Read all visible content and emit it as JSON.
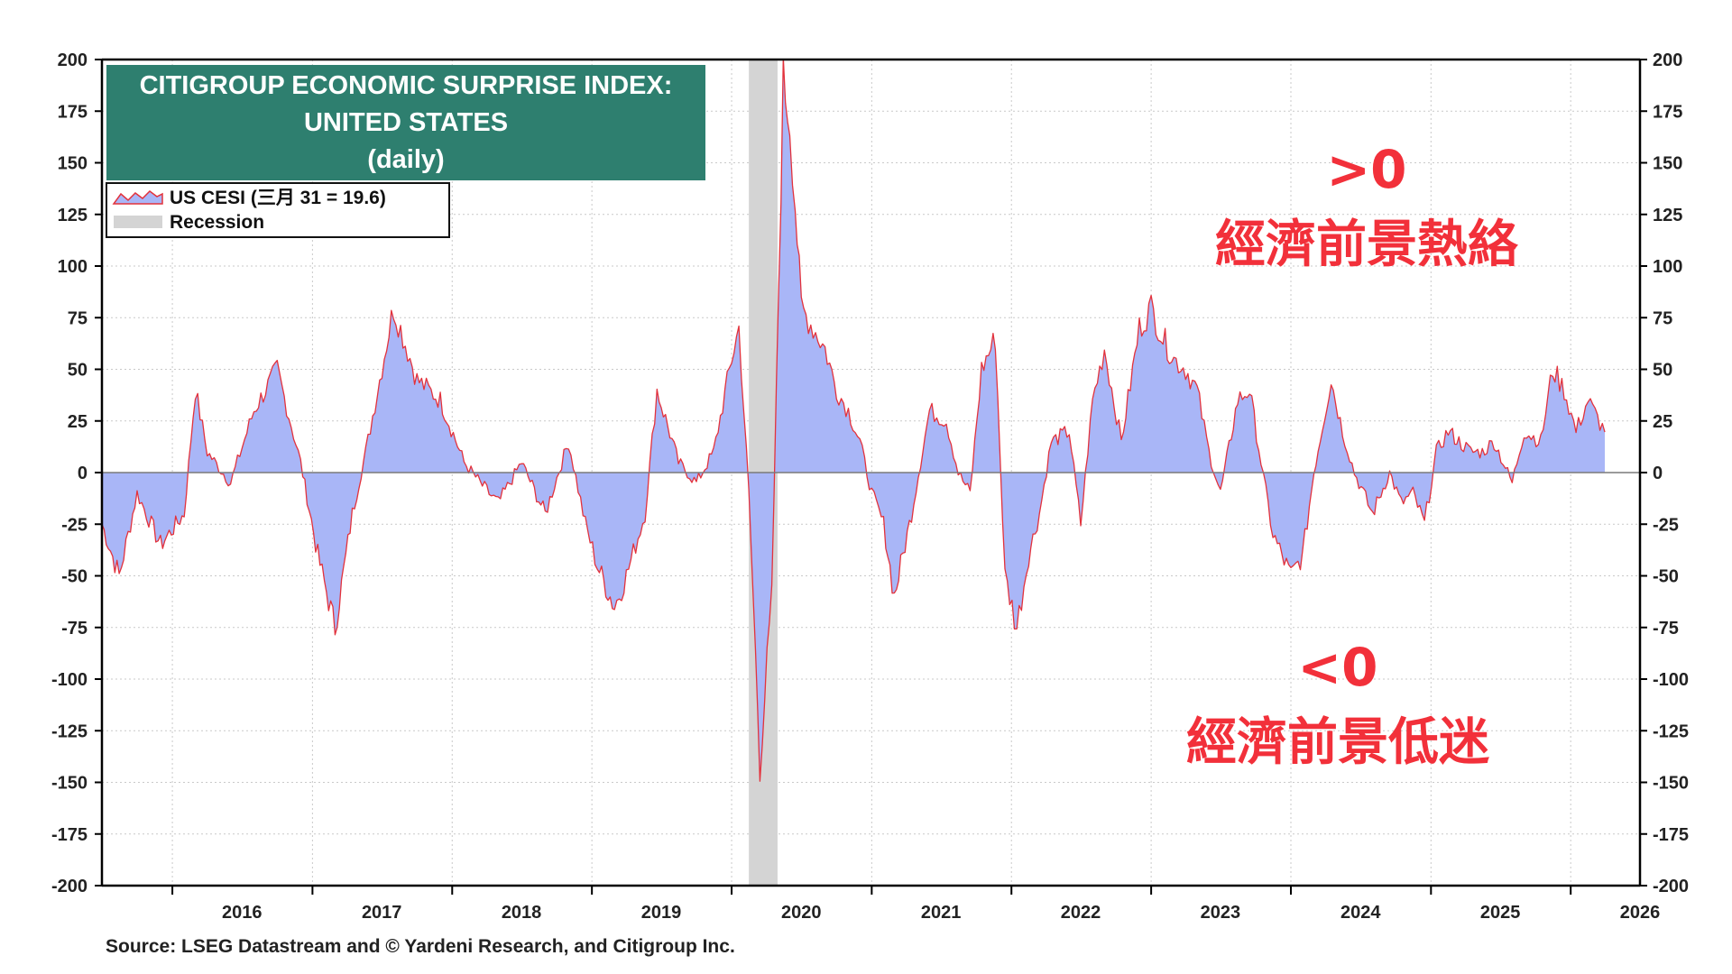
{
  "chart_data": {
    "type": "area",
    "title": [
      "CITIGROUP ECONOMIC SURPRISE INDEX:",
      "UNITED STATES",
      "(daily)"
    ],
    "xlabel": "",
    "ylabel": "",
    "ylim": [
      -200,
      200
    ],
    "y_ticks": [
      "200",
      "175",
      "150",
      "125",
      "100",
      "75",
      "50",
      "25",
      "0",
      "-25",
      "-50",
      "-75",
      "-100",
      "-125",
      "-150",
      "-175",
      "-200"
    ],
    "x_ticks": [
      "2016",
      "2017",
      "2018",
      "2019",
      "2020",
      "2021",
      "2022",
      "2023",
      "2024",
      "2025",
      "2026"
    ],
    "xlim": [
      "2015-07-01",
      "2026-07-01"
    ],
    "grid": true,
    "legend_position": "top-left",
    "legend": [
      {
        "label": "US CESI (三月 31 = 19.6)",
        "kind": "series"
      },
      {
        "label": "Recession",
        "kind": "shade"
      }
    ],
    "recession": {
      "start": "2020-02-15",
      "end": "2020-04-30"
    },
    "series": [
      {
        "name": "US CESI",
        "x": [
          "2015-07-01",
          "2015-08-15",
          "2015-10-01",
          "2015-12-01",
          "2016-02-01",
          "2016-03-01",
          "2016-04-01",
          "2016-06-01",
          "2016-08-01",
          "2016-10-01",
          "2016-12-01",
          "2017-01-15",
          "2017-03-01",
          "2017-04-15",
          "2017-05-20",
          "2017-08-01",
          "2017-10-01",
          "2017-12-01",
          "2018-02-01",
          "2018-03-15",
          "2018-05-01",
          "2018-07-01",
          "2018-09-01",
          "2018-11-01",
          "2018-12-15",
          "2019-01-15",
          "2019-03-01",
          "2019-04-01",
          "2019-05-20",
          "2019-06-20",
          "2019-08-15",
          "2019-10-01",
          "2019-11-15",
          "2020-01-01",
          "2020-01-20",
          "2020-02-15",
          "2020-03-15",
          "2020-04-15",
          "2020-05-15",
          "2020-06-01",
          "2020-06-15",
          "2020-07-01",
          "2020-08-01",
          "2020-09-01",
          "2020-10-01",
          "2020-11-01",
          "2020-12-01",
          "2021-01-01",
          "2021-02-01",
          "2021-03-01",
          "2021-04-15",
          "2021-06-01",
          "2021-07-15",
          "2021-08-15",
          "2021-09-15",
          "2021-10-15",
          "2021-11-20",
          "2021-12-15",
          "2022-01-15",
          "2022-02-15",
          "2022-03-15",
          "2022-04-15",
          "2022-06-01",
          "2022-07-01",
          "2022-08-01",
          "2022-09-01",
          "2022-10-15",
          "2022-12-01",
          "2023-01-01",
          "2023-02-01",
          "2023-03-01",
          "2023-04-01",
          "2023-05-01",
          "2023-06-01",
          "2023-07-01",
          "2023-08-15",
          "2023-09-15",
          "2023-10-15",
          "2023-11-15",
          "2024-01-01",
          "2024-02-01",
          "2024-03-01",
          "2024-04-15",
          "2024-05-15",
          "2024-06-15",
          "2024-08-01",
          "2024-09-15",
          "2024-10-15",
          "2024-11-15",
          "2024-12-15",
          "2025-01-15",
          "2025-02-15",
          "2025-03-15",
          "2025-04-15",
          "2025-05-15",
          "2025-06-15",
          "2025-08-01",
          "2025-09-01",
          "2025-10-15",
          "2025-11-15",
          "2025-12-15",
          "2026-01-15",
          "2026-02-15",
          "2026-03-31"
        ],
        "values": [
          -25,
          -50,
          -10,
          -35,
          -20,
          40,
          10,
          -5,
          30,
          50,
          5,
          -40,
          -75,
          -20,
          10,
          80,
          45,
          35,
          5,
          -5,
          -15,
          5,
          -20,
          15,
          -25,
          -45,
          -65,
          -50,
          -20,
          40,
          5,
          -5,
          10,
          55,
          70,
          -10,
          -140,
          -60,
          190,
          170,
          130,
          80,
          70,
          60,
          40,
          30,
          15,
          -10,
          -25,
          -60,
          -20,
          30,
          25,
          0,
          -10,
          50,
          65,
          -50,
          -75,
          -40,
          -20,
          15,
          20,
          -25,
          35,
          60,
          15,
          70,
          80,
          65,
          55,
          50,
          40,
          10,
          -10,
          35,
          40,
          5,
          -30,
          -50,
          -40,
          0,
          45,
          20,
          0,
          -20,
          0,
          -15,
          -10,
          -25,
          10,
          20,
          15,
          10,
          10,
          15,
          -5,
          20,
          15,
          50,
          40,
          20,
          35,
          19.6
        ]
      }
    ],
    "annotations": [
      {
        "text": ">0",
        "meaning": "經濟前景熱絡"
      },
      {
        "text": "<0",
        "meaning": "經濟前景低迷"
      }
    ],
    "source": "Source: LSEG Datastream and © Yardeni Research, and Citigroup Inc."
  },
  "colors": {
    "fill": "#a9b6f7",
    "line": "#e3323c",
    "title_bg": "#2e7f6f",
    "recession": "#d4d4d4",
    "annotation": "#f2303a",
    "grid": "#c9c9c9"
  }
}
